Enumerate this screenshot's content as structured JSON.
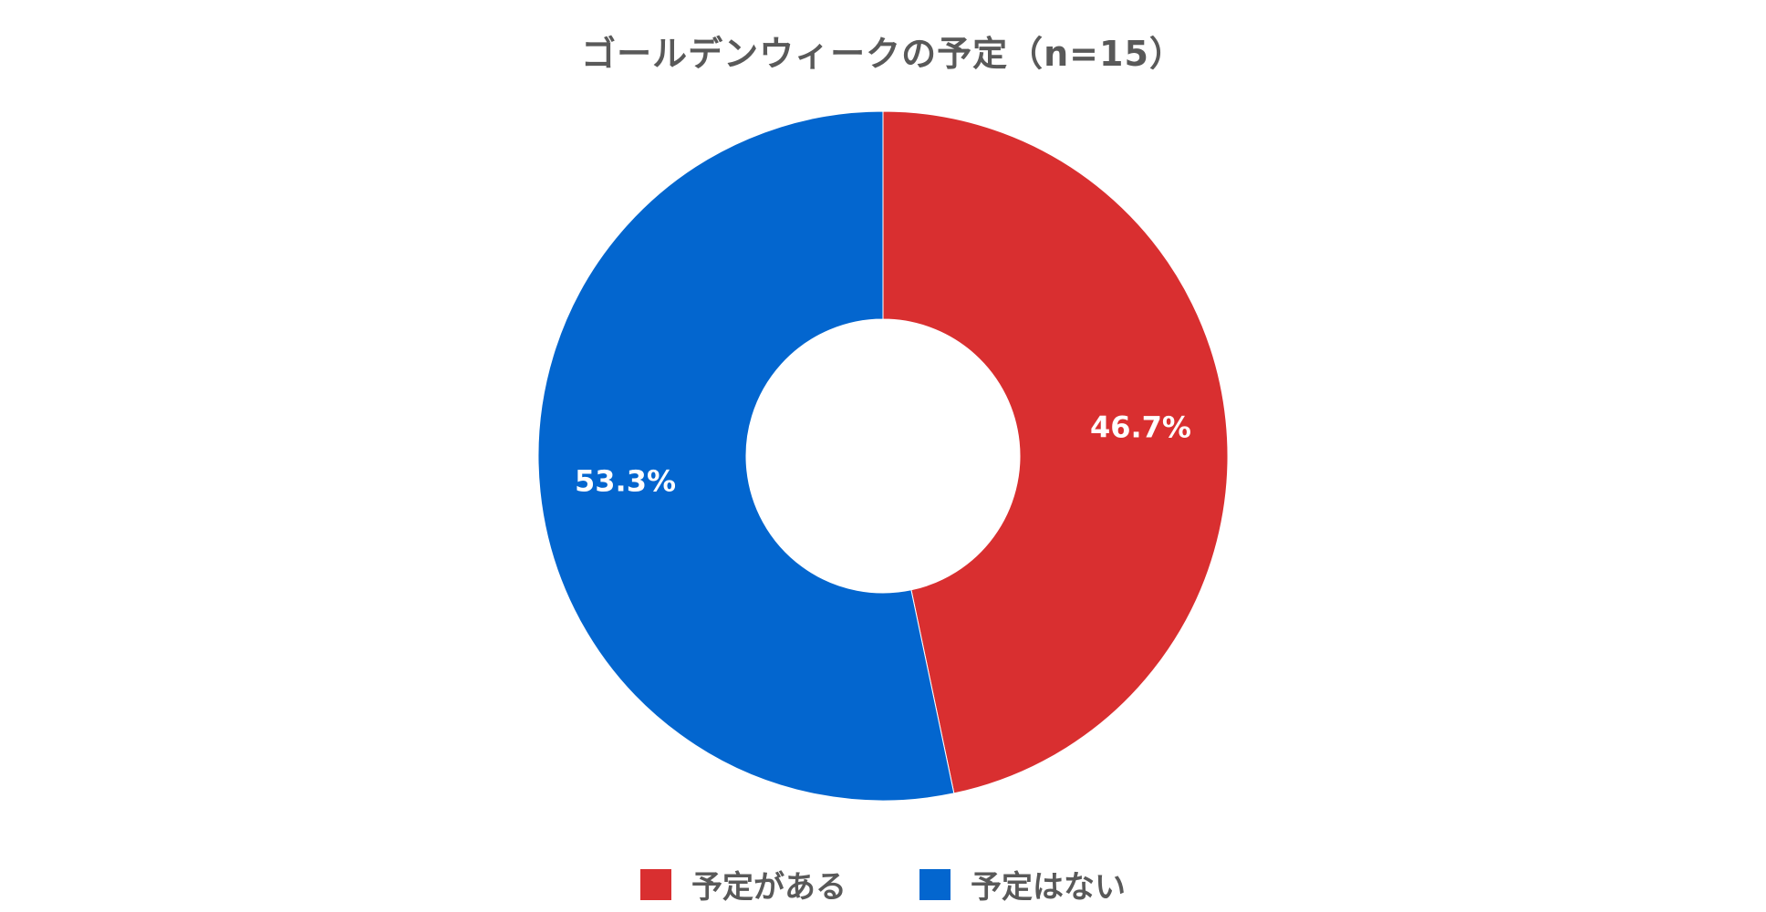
{
  "chart_data": {
    "type": "pie",
    "donut": true,
    "title": "ゴールデンウィークの予定（n=15）",
    "categories": [
      "予定がある",
      "予定はない"
    ],
    "values": [
      46.7,
      53.3
    ],
    "value_labels": [
      "46.7%",
      "53.3%"
    ],
    "colors": [
      "#D92F30",
      "#0366CF"
    ],
    "legend": "bottom"
  },
  "legend": {
    "items": [
      {
        "label": "予定がある",
        "color": "#D92F30"
      },
      {
        "label": "予定はない",
        "color": "#0366CF"
      }
    ]
  }
}
